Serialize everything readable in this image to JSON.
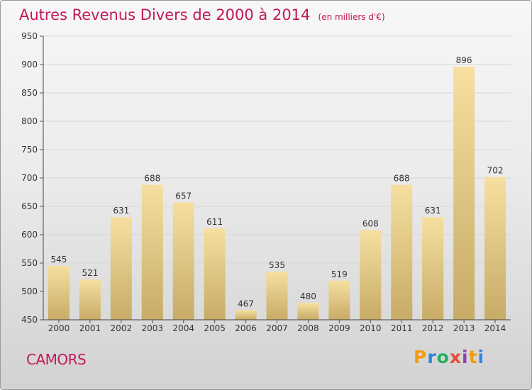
{
  "header": {
    "title": "Autres Revenus Divers de 2000 à 2014",
    "subtitle": "(en milliers d'€)"
  },
  "footer": {
    "commune": "CAMORS",
    "brand": {
      "letters": [
        "P",
        "r",
        "o",
        "x",
        "i",
        "t",
        "i"
      ],
      "colors": [
        "#f39c12",
        "#2e86de",
        "#27ae60",
        "#e74c3c",
        "#8e44ad",
        "#f39c12",
        "#2e86de"
      ]
    }
  },
  "colors": {
    "title": "#c2185b",
    "bar_light": "#f6dfa0",
    "bar_dark": "#c7ab66",
    "grid": "#d6d6d6"
  },
  "chart_data": {
    "type": "bar",
    "title": "Autres Revenus Divers de 2000 à 2014",
    "subtitle": "(en milliers d'€)",
    "xlabel": "",
    "ylabel": "",
    "categories": [
      "2000",
      "2001",
      "2002",
      "2003",
      "2004",
      "2005",
      "2006",
      "2007",
      "2008",
      "2009",
      "2010",
      "2011",
      "2012",
      "2013",
      "2014"
    ],
    "values": [
      545,
      521,
      631,
      688,
      657,
      611,
      467,
      535,
      480,
      519,
      608,
      688,
      631,
      896,
      702
    ],
    "ylim": [
      450,
      950
    ],
    "yticks": [
      450,
      500,
      550,
      600,
      650,
      700,
      750,
      800,
      850,
      900,
      950
    ],
    "grid": true,
    "data_labels": true
  }
}
